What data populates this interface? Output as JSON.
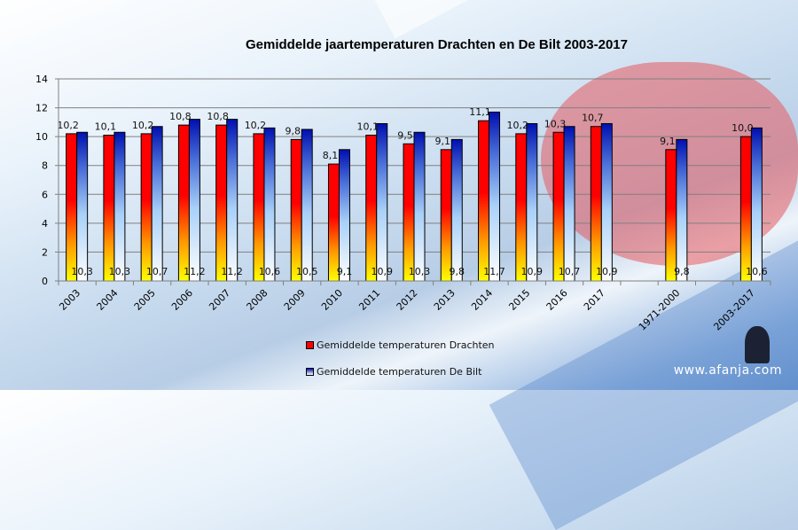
{
  "chart_data": {
    "type": "bar",
    "title": "Gemiddelde jaartemperaturen Drachten en De Bilt 2003-2017",
    "categories": [
      "2003",
      "2004",
      "2005",
      "2006",
      "2007",
      "2008",
      "2009",
      "2010",
      "2011",
      "2012",
      "2013",
      "2014",
      "2015",
      "2016",
      "2017",
      "",
      "1971-2000",
      "",
      "2003-2017"
    ],
    "series": [
      {
        "name": "Gemiddelde temperaturen Drachten",
        "values": [
          10.2,
          10.1,
          10.2,
          10.8,
          10.8,
          10.2,
          9.8,
          8.1,
          10.1,
          9.5,
          9.1,
          11.1,
          10.2,
          10.3,
          10.7,
          null,
          9.1,
          null,
          10.0
        ],
        "labels": [
          "10,2",
          "10,1",
          "10,2",
          "10,8",
          "10,8",
          "10,2",
          "9,8",
          "8,1",
          "10,1",
          "9,5",
          "9,1",
          "11,1",
          "10,2",
          "10,3",
          "10,7",
          "",
          "9,1",
          "",
          "10,0"
        ],
        "color": "#ff0000"
      },
      {
        "name": "Gemiddelde temperaturen De Bilt",
        "values": [
          10.3,
          10.3,
          10.7,
          11.2,
          11.2,
          10.6,
          10.5,
          9.1,
          10.9,
          10.3,
          9.8,
          11.7,
          10.9,
          10.7,
          10.9,
          null,
          9.8,
          null,
          10.6
        ],
        "labels": [
          "10,3",
          "10,3",
          "10,7",
          "11,2",
          "11,2",
          "10,6",
          "10,5",
          "9,1",
          "10,9",
          "10,3",
          "9,8",
          "11,7",
          "10,9",
          "10,7",
          "10,9",
          "",
          "9,8",
          "",
          "10,6"
        ],
        "color": "#0010c0"
      }
    ],
    "yticks": [
      "0",
      "2",
      "4",
      "6",
      "8",
      "10",
      "12",
      "14"
    ],
    "ylim": [
      0,
      14
    ],
    "grid": true,
    "legend": "bottom"
  },
  "watermark": "www.afanja.com"
}
